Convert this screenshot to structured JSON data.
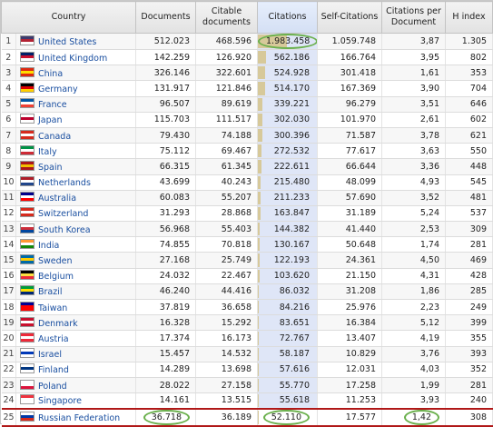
{
  "headers": {
    "country": "Country",
    "documents": "Documents",
    "citable": "Citable documents",
    "citations": "Citations",
    "self_citations": "Self-Citations",
    "cpd": "Citations per Document",
    "h_index": "H index"
  },
  "rows": [
    {
      "rank": "1",
      "country": "United States",
      "documents": "512.023",
      "citable": "468.596",
      "citations": "1.983.458",
      "citations_num": 1983458,
      "self": "1.059.748",
      "cpd": "3,87",
      "h": "1.305",
      "flag_colors": [
        "#3c3b6e",
        "#b22234",
        "#ffffff"
      ]
    },
    {
      "rank": "2",
      "country": "United Kingdom",
      "documents": "142.259",
      "citable": "126.920",
      "citations": "562.186",
      "citations_num": 562186,
      "self": "166.764",
      "cpd": "3,95",
      "h": "802",
      "flag_colors": [
        "#012169",
        "#c8102e",
        "#ffffff"
      ]
    },
    {
      "rank": "3",
      "country": "China",
      "documents": "326.146",
      "citable": "322.601",
      "citations": "524.928",
      "citations_num": 524928,
      "self": "301.418",
      "cpd": "1,61",
      "h": "353",
      "flag_colors": [
        "#de2910",
        "#ffde00",
        "#de2910"
      ]
    },
    {
      "rank": "4",
      "country": "Germany",
      "documents": "131.917",
      "citable": "121.846",
      "citations": "514.170",
      "citations_num": 514170,
      "self": "167.369",
      "cpd": "3,90",
      "h": "704",
      "flag_colors": [
        "#000000",
        "#dd0000",
        "#ffce00"
      ]
    },
    {
      "rank": "5",
      "country": "France",
      "documents": "96.507",
      "citable": "89.619",
      "citations": "339.221",
      "citations_num": 339221,
      "self": "96.279",
      "cpd": "3,51",
      "h": "646",
      "flag_colors": [
        "#0055a4",
        "#ffffff",
        "#ef4135"
      ]
    },
    {
      "rank": "6",
      "country": "Japan",
      "documents": "115.703",
      "citable": "111.517",
      "citations": "302.030",
      "citations_num": 302030,
      "self": "101.970",
      "cpd": "2,61",
      "h": "602",
      "flag_colors": [
        "#ffffff",
        "#bc002d",
        "#ffffff"
      ]
    },
    {
      "rank": "7",
      "country": "Canada",
      "documents": "79.430",
      "citable": "74.188",
      "citations": "300.396",
      "citations_num": 300396,
      "self": "71.587",
      "cpd": "3,78",
      "h": "621",
      "flag_colors": [
        "#d52b1e",
        "#ffffff",
        "#d52b1e"
      ]
    },
    {
      "rank": "8",
      "country": "Italy",
      "documents": "75.112",
      "citable": "69.467",
      "citations": "272.532",
      "citations_num": 272532,
      "self": "77.617",
      "cpd": "3,63",
      "h": "550",
      "flag_colors": [
        "#009246",
        "#ffffff",
        "#ce2b37"
      ]
    },
    {
      "rank": "9",
      "country": "Spain",
      "documents": "66.315",
      "citable": "61.345",
      "citations": "222.611",
      "citations_num": 222611,
      "self": "66.644",
      "cpd": "3,36",
      "h": "448",
      "flag_colors": [
        "#aa151b",
        "#f1bf00",
        "#aa151b"
      ]
    },
    {
      "rank": "10",
      "country": "Netherlands",
      "documents": "43.699",
      "citable": "40.243",
      "citations": "215.480",
      "citations_num": 215480,
      "self": "48.099",
      "cpd": "4,93",
      "h": "545",
      "flag_colors": [
        "#ae1c28",
        "#ffffff",
        "#21468b"
      ]
    },
    {
      "rank": "11",
      "country": "Australia",
      "documents": "60.083",
      "citable": "55.207",
      "citations": "211.233",
      "citations_num": 211233,
      "self": "57.690",
      "cpd": "3,52",
      "h": "481",
      "flag_colors": [
        "#00008b",
        "#ffffff",
        "#ff0000"
      ]
    },
    {
      "rank": "12",
      "country": "Switzerland",
      "documents": "31.293",
      "citable": "28.868",
      "citations": "163.847",
      "citations_num": 163847,
      "self": "31.189",
      "cpd": "5,24",
      "h": "537",
      "flag_colors": [
        "#d52b1e",
        "#ffffff",
        "#d52b1e"
      ]
    },
    {
      "rank": "13",
      "country": "South Korea",
      "documents": "56.968",
      "citable": "55.403",
      "citations": "144.382",
      "citations_num": 144382,
      "self": "41.440",
      "cpd": "2,53",
      "h": "309",
      "flag_colors": [
        "#ffffff",
        "#cd2e3a",
        "#0047a0"
      ]
    },
    {
      "rank": "14",
      "country": "India",
      "documents": "74.855",
      "citable": "70.818",
      "citations": "130.167",
      "citations_num": 130167,
      "self": "50.648",
      "cpd": "1,74",
      "h": "281",
      "flag_colors": [
        "#ff9933",
        "#ffffff",
        "#138808"
      ]
    },
    {
      "rank": "15",
      "country": "Sweden",
      "documents": "27.168",
      "citable": "25.749",
      "citations": "122.193",
      "citations_num": 122193,
      "self": "24.361",
      "cpd": "4,50",
      "h": "469",
      "flag_colors": [
        "#006aa7",
        "#fecc00",
        "#006aa7"
      ]
    },
    {
      "rank": "16",
      "country": "Belgium",
      "documents": "24.032",
      "citable": "22.467",
      "citations": "103.620",
      "citations_num": 103620,
      "self": "21.150",
      "cpd": "4,31",
      "h": "428",
      "flag_colors": [
        "#000000",
        "#fae042",
        "#ed2939"
      ]
    },
    {
      "rank": "17",
      "country": "Brazil",
      "documents": "46.240",
      "citable": "44.416",
      "citations": "86.032",
      "citations_num": 86032,
      "self": "31.208",
      "cpd": "1,86",
      "h": "285",
      "flag_colors": [
        "#009c3b",
        "#ffdf00",
        "#002776"
      ]
    },
    {
      "rank": "18",
      "country": "Taiwan",
      "documents": "37.819",
      "citable": "36.658",
      "citations": "84.216",
      "citations_num": 84216,
      "self": "25.976",
      "cpd": "2,23",
      "h": "249",
      "flag_colors": [
        "#000095",
        "#fe0000",
        "#fe0000"
      ]
    },
    {
      "rank": "19",
      "country": "Denmark",
      "documents": "16.328",
      "citable": "15.292",
      "citations": "83.651",
      "citations_num": 83651,
      "self": "16.384",
      "cpd": "5,12",
      "h": "399",
      "flag_colors": [
        "#c8102e",
        "#ffffff",
        "#c8102e"
      ]
    },
    {
      "rank": "20",
      "country": "Austria",
      "documents": "17.374",
      "citable": "16.173",
      "citations": "72.767",
      "citations_num": 72767,
      "self": "13.407",
      "cpd": "4,19",
      "h": "355",
      "flag_colors": [
        "#ed2939",
        "#ffffff",
        "#ed2939"
      ]
    },
    {
      "rank": "21",
      "country": "Israel",
      "documents": "15.457",
      "citable": "14.532",
      "citations": "58.187",
      "citations_num": 58187,
      "self": "10.829",
      "cpd": "3,76",
      "h": "393",
      "flag_colors": [
        "#ffffff",
        "#0038b8",
        "#ffffff"
      ]
    },
    {
      "rank": "22",
      "country": "Finland",
      "documents": "14.289",
      "citable": "13.698",
      "citations": "57.616",
      "citations_num": 57616,
      "self": "12.031",
      "cpd": "4,03",
      "h": "352",
      "flag_colors": [
        "#ffffff",
        "#003580",
        "#ffffff"
      ]
    },
    {
      "rank": "23",
      "country": "Poland",
      "documents": "28.022",
      "citable": "27.158",
      "citations": "55.770",
      "citations_num": 55770,
      "self": "17.258",
      "cpd": "1,99",
      "h": "281",
      "flag_colors": [
        "#ffffff",
        "#ffffff",
        "#dc143c"
      ]
    },
    {
      "rank": "24",
      "country": "Singapore",
      "documents": "14.161",
      "citable": "13.515",
      "citations": "55.618",
      "citations_num": 55618,
      "self": "11.253",
      "cpd": "3,93",
      "h": "240",
      "flag_colors": [
        "#ef3340",
        "#ffffff",
        "#ffffff"
      ]
    },
    {
      "rank": "25",
      "country": "Russian Federation",
      "documents": "36.718",
      "citable": "36.189",
      "citations": "52.110",
      "citations_num": 52110,
      "self": "17.577",
      "cpd": "1,42",
      "h": "308",
      "flag_colors": [
        "#ffffff",
        "#0039a6",
        "#d52b1e"
      ]
    }
  ],
  "colors": {
    "citation_bar": "#d7c99a",
    "citation_cell_bg": "#dfe6f7",
    "highlight_border": "#b01818",
    "circle": "#6ab04c",
    "link": "#1a4fa0"
  }
}
